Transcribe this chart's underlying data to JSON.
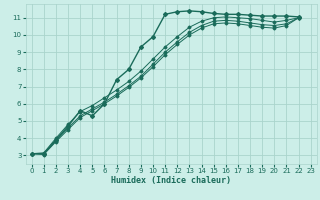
{
  "xlabel": "Humidex (Indice chaleur)",
  "bg_color": "#cceee8",
  "grid_color": "#aad4cc",
  "line_color": "#1a6b5a",
  "xlim": [
    -0.5,
    23.5
  ],
  "ylim": [
    2.5,
    11.8
  ],
  "xticks": [
    0,
    1,
    2,
    3,
    4,
    5,
    6,
    7,
    8,
    9,
    10,
    11,
    12,
    13,
    14,
    15,
    16,
    17,
    18,
    19,
    20,
    21,
    22,
    23
  ],
  "yticks": [
    3,
    4,
    5,
    6,
    7,
    8,
    9,
    10,
    11
  ],
  "x_vals": [
    0,
    1,
    2,
    3,
    4,
    5,
    6,
    7,
    8,
    9,
    10,
    11,
    12,
    13,
    14,
    15,
    16,
    17,
    18,
    19,
    20,
    21,
    22
  ],
  "series": [
    [
      3.1,
      3.1,
      3.9,
      4.7,
      5.6,
      5.3,
      6.0,
      7.4,
      8.0,
      9.3,
      9.9,
      11.2,
      11.35,
      11.4,
      11.35,
      11.25,
      11.2,
      11.2,
      11.15,
      11.1,
      11.1,
      11.1,
      11.05
    ],
    [
      3.1,
      3.15,
      4.0,
      4.8,
      5.55,
      5.9,
      6.35,
      6.8,
      7.3,
      7.9,
      8.6,
      9.3,
      9.9,
      10.45,
      10.8,
      11.0,
      11.05,
      11.0,
      10.95,
      10.85,
      10.75,
      10.85,
      11.0
    ],
    [
      3.1,
      3.1,
      3.85,
      4.6,
      5.3,
      5.7,
      6.1,
      6.55,
      7.05,
      7.6,
      8.3,
      9.0,
      9.6,
      10.15,
      10.55,
      10.8,
      10.85,
      10.8,
      10.7,
      10.6,
      10.55,
      10.65,
      11.0
    ],
    [
      3.1,
      3.05,
      3.8,
      4.5,
      5.2,
      5.6,
      6.0,
      6.45,
      6.95,
      7.5,
      8.15,
      8.85,
      9.45,
      10.0,
      10.4,
      10.65,
      10.7,
      10.65,
      10.55,
      10.45,
      10.4,
      10.55,
      11.0
    ]
  ]
}
